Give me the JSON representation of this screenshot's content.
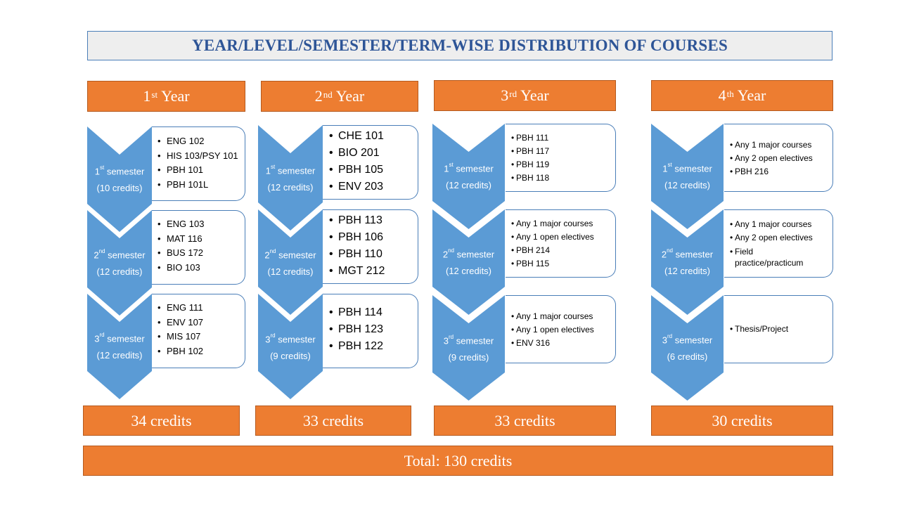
{
  "title": "YEAR/LEVEL/SEMESTER/TERM-WISE  DISTRIBUTION  OF COURSES",
  "years": [
    {
      "ordinal": "1",
      "suffix": "st",
      "word": "Year",
      "semesters": [
        {
          "ordinal": "1",
          "suffix": "st",
          "word": "semester",
          "credits": "(10 credits)",
          "courses": [
            "ENG 102",
            "HIS 103/PSY 101",
            "PBH 101",
            "PBH 101L"
          ]
        },
        {
          "ordinal": "2",
          "suffix": "nd",
          "word": "semester",
          "credits": "(12 credits)",
          "courses": [
            "ENG 103",
            "MAT 116",
            "BUS 172",
            "BIO 103"
          ]
        },
        {
          "ordinal": "3",
          "suffix": "rd",
          "word": "semester",
          "credits": "(12 credits)",
          "courses": [
            "ENG 111",
            "ENV 107",
            "MIS 107",
            "PBH 102"
          ]
        }
      ],
      "total": "34 credits"
    },
    {
      "ordinal": "2",
      "suffix": "nd",
      "word": "Year",
      "semesters": [
        {
          "ordinal": "1",
          "suffix": "st",
          "word": "semester",
          "credits": "(12 credits)",
          "courses": [
            "CHE 101",
            "BIO 201",
            "PBH 105",
            "ENV 203"
          ]
        },
        {
          "ordinal": "2",
          "suffix": "nd",
          "word": "semester",
          "credits": "(12 credits)",
          "courses": [
            "PBH 113",
            "PBH 106",
            "PBH 110",
            "MGT 212"
          ]
        },
        {
          "ordinal": "3",
          "suffix": "rd",
          "word": "semester",
          "credits": "(9 credits)",
          "courses": [
            "PBH 114",
            "PBH 123",
            "PBH 122"
          ]
        }
      ],
      "total": "33 credits"
    },
    {
      "ordinal": "3",
      "suffix": "rd",
      "word": "Year",
      "semesters": [
        {
          "ordinal": "1",
          "suffix": "st",
          "word": "semester",
          "credits": "(12 credits)",
          "courses": [
            "PBH 111",
            "PBH 117",
            "PBH 119",
            "PBH 118"
          ]
        },
        {
          "ordinal": "2",
          "suffix": "nd",
          "word": "semester",
          "credits": "(12 credits)",
          "courses": [
            "Any 1 major courses",
            "Any 1 open electives",
            "PBH 214",
            "PBH 115"
          ]
        },
        {
          "ordinal": "3",
          "suffix": "rd",
          "word": "semester",
          "credits": "(9 credits)",
          "courses": [
            "Any 1 major courses",
            "Any 1 open electives",
            "ENV 316"
          ]
        }
      ],
      "total": "33 credits"
    },
    {
      "ordinal": "4",
      "suffix": "th",
      "word": "Year",
      "semesters": [
        {
          "ordinal": "1",
          "suffix": "st",
          "word": "semester",
          "credits": "(12 credits)",
          "courses": [
            "Any 1 major courses",
            "Any 2 open electives",
            "PBH 216"
          ]
        },
        {
          "ordinal": "2",
          "suffix": "nd",
          "word": "semester",
          "credits": "(12 credits)",
          "courses": [
            "Any 1 major courses",
            "Any 2 open electives",
            "Field practice/practicum"
          ]
        },
        {
          "ordinal": "3",
          "suffix": "rd",
          "word": "semester",
          "credits": "(6 credits)",
          "courses": [
            "Thesis/Project"
          ]
        }
      ],
      "total": "30 credits"
    }
  ],
  "grand_total": "Total: 130 credits",
  "colors": {
    "accent_orange": "#ed7d31",
    "chevron_blue": "#5b9bd5",
    "title_blue": "#2e5597",
    "border_blue": "#4a7eb8"
  }
}
